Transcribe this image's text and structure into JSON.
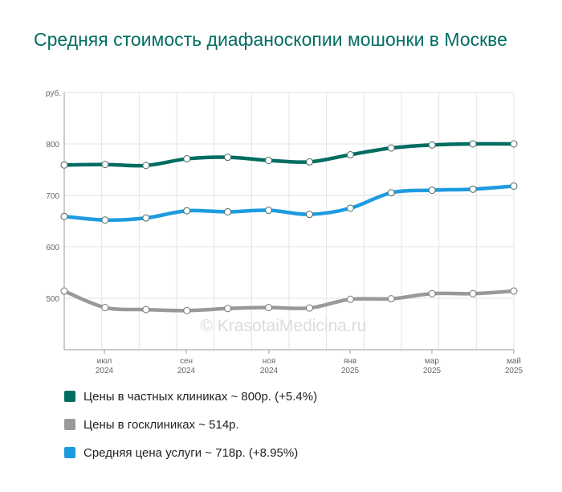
{
  "title": "Средняя стоимость диафаноскопии мошонки в Москве",
  "watermark": "© KrasotaiMedicina.ru",
  "chart_data": {
    "type": "line",
    "ylabel": "руб.",
    "ylim": [
      400,
      900
    ],
    "yticks": [
      500,
      600,
      700,
      800
    ],
    "grid": true,
    "x": [
      "2024-05",
      "2024-06",
      "2024-07",
      "2024-08",
      "2024-09",
      "2024-10",
      "2024-11",
      "2024-12",
      "2025-01",
      "2025-02",
      "2025-03",
      "2025-04",
      "2025-05"
    ],
    "xtick_labels": [
      {
        "month": "июл",
        "year": "2024"
      },
      {
        "month": "сен",
        "year": "2024"
      },
      {
        "month": "ноя",
        "year": "2024"
      },
      {
        "month": "янв",
        "year": "2025"
      },
      {
        "month": "мар",
        "year": "2025"
      },
      {
        "month": "май",
        "year": "2025"
      }
    ],
    "series": [
      {
        "name": "Цены в частных клиниках",
        "color": "#006d62",
        "values": [
          759,
          760,
          758,
          771,
          774,
          768,
          765,
          779,
          792,
          798,
          800,
          800,
          800
        ]
      },
      {
        "name": "Цены в госклиниках",
        "color": "#999999",
        "values": [
          514,
          482,
          478,
          476,
          480,
          482,
          481,
          498,
          499,
          509,
          509,
          514,
          514
        ]
      },
      {
        "name": "Средняя цена услуги",
        "color": "#1e9be0",
        "values": [
          659,
          652,
          656,
          670,
          668,
          671,
          663,
          675,
          705,
          710,
          712,
          718,
          718
        ]
      }
    ]
  },
  "legend": [
    {
      "label": "Цены в частных клиниках ~ 800р. (+5.4%)",
      "color": "#006d62"
    },
    {
      "label": "Цены в госклиниках ~ 514р.",
      "color": "#999999"
    },
    {
      "label": "Средняя цена услуги ~ 718р. (+8.95%)",
      "color": "#1e9be0"
    }
  ]
}
